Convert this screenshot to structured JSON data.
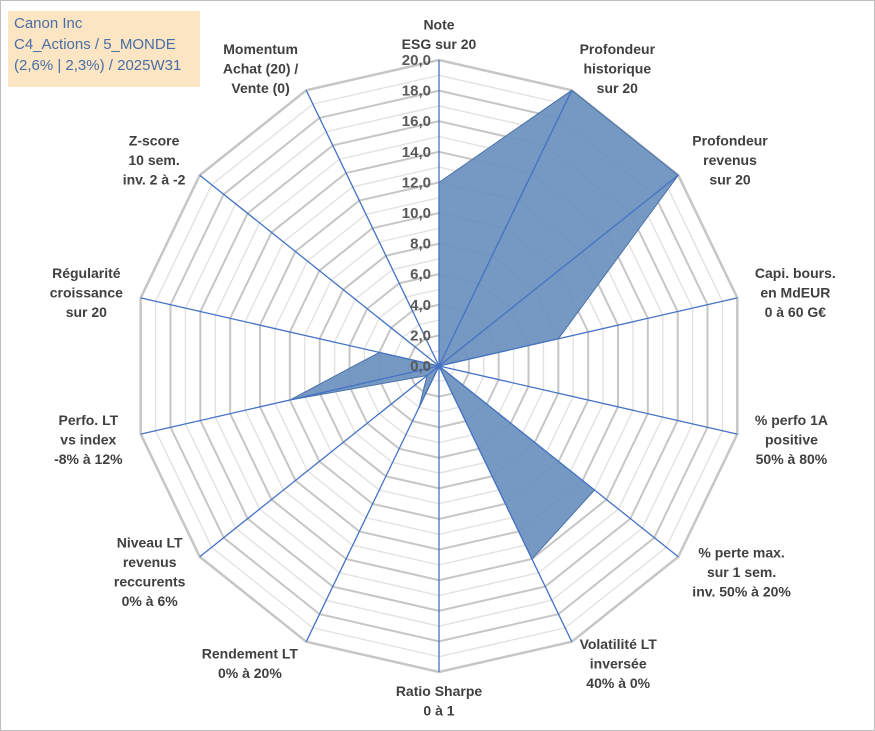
{
  "title_box": {
    "line1": "Canon Inc",
    "line2": "C4_Actions / 5_MONDE",
    "line3": "(2,6% | 2,3%) / 2025W31"
  },
  "colors": {
    "fill": "#6f93c0",
    "fill_stroke": "#4a72a8",
    "axis": "#4472c4",
    "grid": "#cfcfcf",
    "title_bg": "#fbe5c2",
    "title_text": "#4a6da7"
  },
  "chart_data": {
    "type": "radar",
    "rmin": 0,
    "rmax": 20,
    "rticks": [
      "0,0",
      "2,0",
      "4,0",
      "6,0",
      "8,0",
      "10,0",
      "12,0",
      "14,0",
      "16,0",
      "18,0",
      "20,0"
    ],
    "gridlines": true,
    "axes": [
      {
        "label": [
          "Note",
          "ESG sur 20"
        ],
        "value": 12.0
      },
      {
        "label": [
          "Profondeur",
          "historique",
          "sur 20"
        ],
        "value": 20.0
      },
      {
        "label": [
          "Profondeur",
          "revenus",
          "sur 20"
        ],
        "value": 20.0
      },
      {
        "label": [
          "Capi. bours.",
          "en MdEUR",
          "0 à 60 G€"
        ],
        "value": 8.0
      },
      {
        "label": [
          "% perfo 1A",
          "positive",
          "50% à 80%"
        ],
        "value": 0.0
      },
      {
        "label": [
          "% perte max.",
          "sur 1 sem.",
          "inv. 50% à 20%"
        ],
        "value": 13.0
      },
      {
        "label": [
          "Volatilité LT",
          "inversée",
          "40% à 0%"
        ],
        "value": 14.0
      },
      {
        "label": [
          "Ratio Sharpe",
          "0 à 1"
        ],
        "value": 0.0
      },
      {
        "label": [
          "Rendement LT",
          "0% à 20%"
        ],
        "value": 3.0
      },
      {
        "label": [
          "Niveau LT",
          "revenus",
          "reccurents",
          "0% à 6%"
        ],
        "value": 1.0
      },
      {
        "label": [
          "Perfo. LT",
          "vs index",
          "-8% à 12%"
        ],
        "value": 10.0
      },
      {
        "label": [
          "Régularité",
          "croissance",
          "sur 20"
        ],
        "value": 4.0
      },
      {
        "label": [
          "Z-score",
          "10 sem.",
          "inv. 2 à -2"
        ],
        "value": 0.0
      },
      {
        "label": [
          "Momentum",
          "Achat (20) /",
          "Vente (0)"
        ],
        "value": 0.0
      }
    ]
  }
}
